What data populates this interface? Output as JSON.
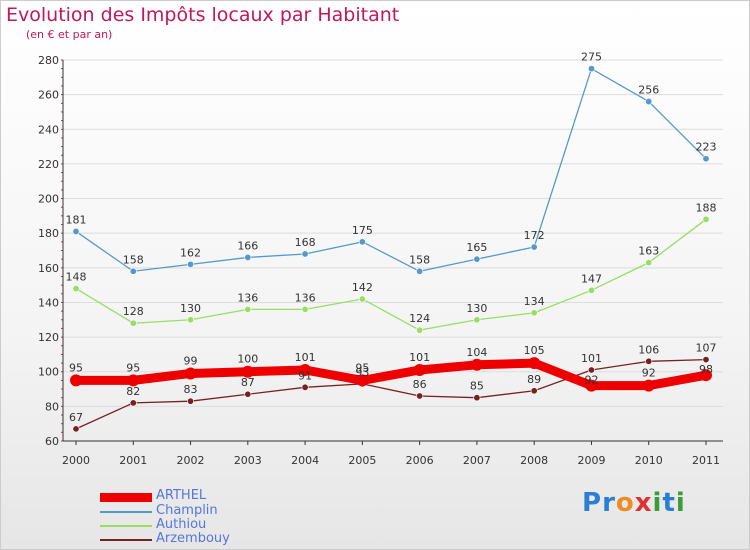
{
  "page": {
    "title": "Evolution des Impôts locaux par Habitant",
    "subtitle": "(en € et par an)",
    "brand": "Proxiti"
  },
  "chart_data": {
    "type": "line",
    "title": "Evolution des Impôts locaux par Habitant",
    "subtitle": "(en € et par an)",
    "xlabel": "",
    "ylabel": "",
    "categories": [
      "2000",
      "2001",
      "2002",
      "2003",
      "2004",
      "2005",
      "2006",
      "2007",
      "2008",
      "2009",
      "2010",
      "2011"
    ],
    "ylim": [
      60,
      280
    ],
    "yticks": [
      60,
      80,
      100,
      120,
      140,
      160,
      180,
      200,
      220,
      240,
      260,
      280
    ],
    "grid": true,
    "legend_position": "bottom-left",
    "series": [
      {
        "name": "ARTHEL",
        "color": "#ee0000",
        "emphasis": true,
        "values": [
          95,
          95,
          99,
          100,
          101,
          95,
          101,
          104,
          105,
          92,
          92,
          98
        ],
        "labels": [
          "95",
          "95",
          "99",
          "100",
          "101",
          "95",
          "101",
          "104",
          "105",
          "",
          "92",
          ""
        ]
      },
      {
        "name": "Champlin",
        "color": "#5599cc",
        "emphasis": false,
        "values": [
          181,
          158,
          162,
          166,
          168,
          175,
          158,
          165,
          172,
          275,
          256,
          223
        ],
        "labels": [
          "181",
          "158",
          "162",
          "166",
          "168",
          "175",
          "158",
          "165",
          "172",
          "275",
          "256",
          "223"
        ]
      },
      {
        "name": "Authiou",
        "color": "#99dd66",
        "emphasis": false,
        "values": [
          148,
          128,
          130,
          136,
          136,
          142,
          124,
          130,
          134,
          147,
          163,
          188
        ],
        "labels": [
          "148",
          "128",
          "130",
          "136",
          "136",
          "142",
          "124",
          "130",
          "134",
          "147",
          "163",
          "188"
        ]
      },
      {
        "name": "Arzembouy",
        "color": "#772222",
        "emphasis": false,
        "values": [
          67,
          82,
          83,
          87,
          91,
          93,
          86,
          85,
          89,
          101,
          106,
          107
        ],
        "labels": [
          "67",
          "82",
          "83",
          "87",
          "91",
          "93",
          "86",
          "85",
          "89",
          "101",
          "106",
          "107"
        ]
      }
    ],
    "overlap_labels": [
      {
        "series": "ARTHEL",
        "index": 9,
        "text": "92"
      },
      {
        "series": "ARTHEL",
        "index": 11,
        "text": "98"
      }
    ]
  }
}
